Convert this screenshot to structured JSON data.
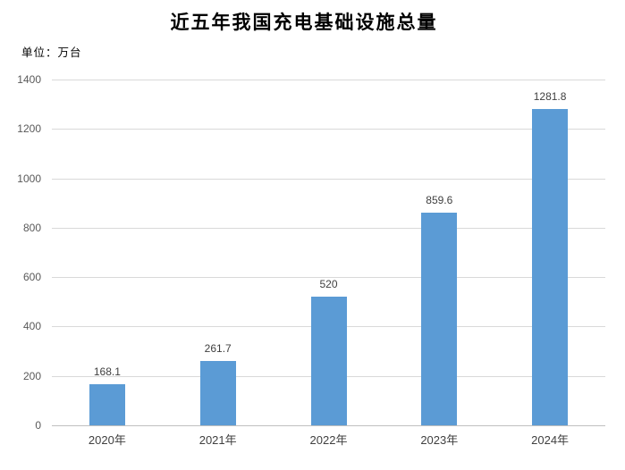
{
  "chart_data": {
    "type": "bar",
    "title": "近五年我国充电基础设施总量",
    "unit_label": "单位：万台",
    "categories": [
      "2020年",
      "2021年",
      "2022年",
      "2023年",
      "2024年"
    ],
    "values": [
      168.1,
      261.7,
      520,
      859.6,
      1281.8
    ],
    "value_labels": [
      "168.1",
      "261.7",
      "520",
      "859.6",
      "1281.8"
    ],
    "xlabel": "",
    "ylabel": "",
    "ylim": [
      0,
      1400
    ],
    "ytick_interval": 200,
    "yticks": [
      0,
      200,
      400,
      600,
      800,
      1000,
      1200,
      1400
    ],
    "grid": true,
    "legend_position": "none",
    "colors": {
      "bar": "#5B9BD5",
      "gridline": "#D9D9D9",
      "axis_line": "#BFBFBF",
      "tick_label": "#595959",
      "value_label": "#404040",
      "category_label": "#404040",
      "title": "#000000",
      "background": "#FFFFFF"
    }
  }
}
